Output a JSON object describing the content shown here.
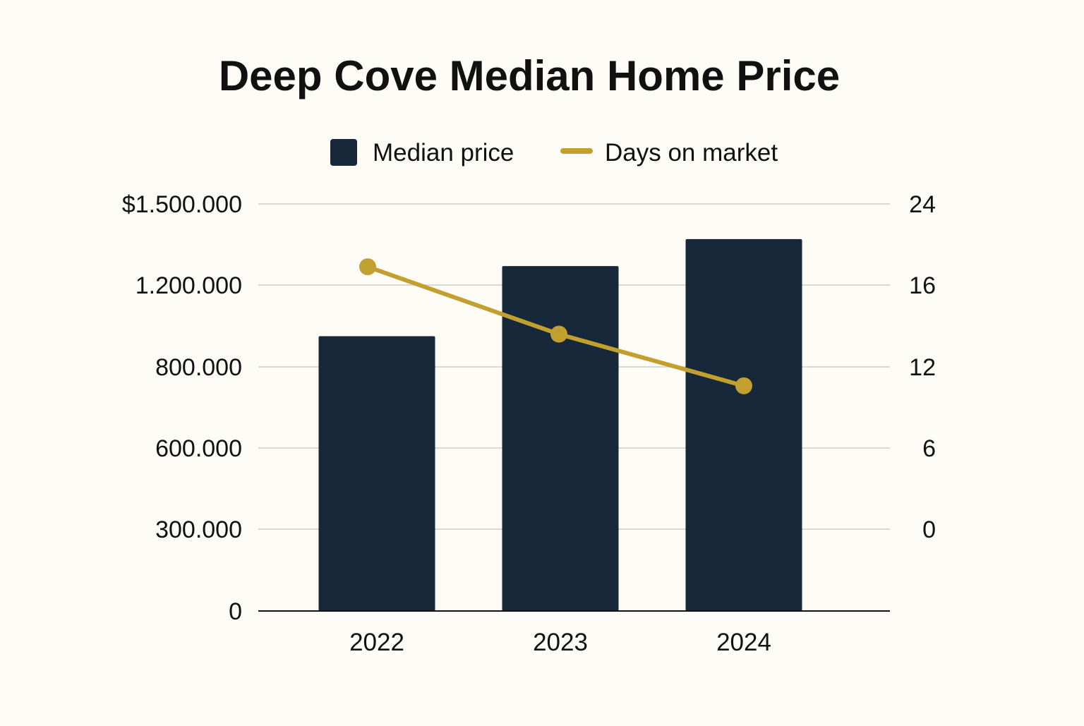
{
  "chart_data": {
    "type": "bar",
    "title": "Deep Cove Median Home Price",
    "categories": [
      "2022",
      "2023",
      "2024"
    ],
    "series": [
      {
        "name": "Median price",
        "kind": "bar",
        "axis": "left",
        "color": "#17283a",
        "values": [
          950000,
          1270000,
          1370000
        ]
      },
      {
        "name": "Days on market",
        "kind": "line",
        "axis": "right",
        "color": "#c1a02f",
        "values": [
          17.8,
          13.6,
          10.6
        ]
      }
    ],
    "left_axis": {
      "ticks": [
        0,
        300000,
        600000,
        800000,
        1200000,
        1500000
      ],
      "tick_labels": [
        "0",
        "300.000",
        "600.000",
        "800.000",
        "1.200.000",
        "$1.500.000"
      ]
    },
    "right_axis": {
      "ticks": [
        0,
        6,
        12,
        16,
        24
      ],
      "tick_labels": [
        "0",
        "6",
        "12",
        "16",
        "24"
      ]
    },
    "grid": true,
    "legend_position": "top-center"
  }
}
